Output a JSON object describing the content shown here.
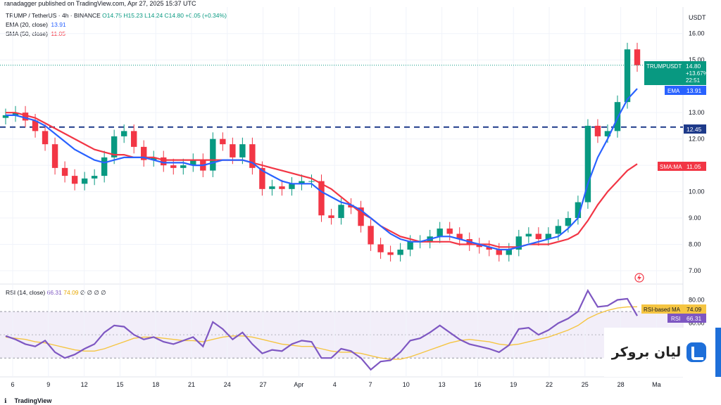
{
  "header": {
    "published": "ranadagger published on TradingView.com, Apr 27, 2025 15:37 UTC"
  },
  "legend": {
    "symbol": "TRUMP / TetherUS · 4h · BINANCE",
    "ohlc": "O14.75  H15.23  L14.24  C14.80  +0.05 (+0.34%)",
    "ema_label": "EMA (20, close)",
    "ema_value": "13.91",
    "sma_label": "SMA (50, close)",
    "sma_value": "11.05",
    "rsi_label": "RSI (14, close)",
    "rsi_value": "66.31",
    "rsi_ma_value": "74.09",
    "rsi_extra": "∅ ∅ ∅ ∅"
  },
  "price_axis": {
    "unit": "USDT",
    "ticks": [
      "16.00",
      "15.00",
      "13.00",
      "12.00",
      "11.00",
      "10.00",
      "9.00",
      "8.00",
      "7.00"
    ]
  },
  "rsi_axis": {
    "ticks": [
      "80.00",
      "60.00"
    ]
  },
  "time_axis": {
    "ticks": [
      "6",
      "9",
      "12",
      "15",
      "18",
      "21",
      "24",
      "27",
      "Apr",
      "4",
      "7",
      "10",
      "13",
      "16",
      "19",
      "22",
      "25",
      "28",
      "Ma"
    ]
  },
  "labels": {
    "price_tag_symbol": "TRUMPUSDT",
    "price_tag_value": "14.80",
    "price_tag_change": "+13.67%",
    "price_tag_timer": "22:51",
    "ema_tag_label": "EMA",
    "ema_tag_value": "13.91",
    "level_tag_value": "12.45",
    "sma_tag_label": "SMA:MA",
    "sma_tag_value": "11.05",
    "rsi_ma_tag_label": "RSI-based MA",
    "rsi_ma_tag_value": "74.09",
    "rsi_tag_label": "RSI",
    "rsi_tag_value": "66.31"
  },
  "footer": {
    "brand": "TradingView"
  },
  "watermark": {
    "text": "لیان بروکر"
  },
  "colors": {
    "up": "#089981",
    "down": "#f23645",
    "ema": "#2962ff",
    "sma": "#f23645",
    "level": "#1e3a8a",
    "rsi": "#7e57c2",
    "rsi_ma": "#f5c542",
    "accent_tag": "#2962ff"
  },
  "chart_data": {
    "type": "candlestick",
    "ylim": [
      6.6,
      16.9
    ],
    "support_level": 12.45,
    "x_ticks": [
      "6",
      "9",
      "12",
      "15",
      "18",
      "21",
      "24",
      "27",
      "Apr",
      "4",
      "7",
      "10",
      "13",
      "16",
      "19",
      "22",
      "25",
      "28",
      "Ma"
    ],
    "price_close": [
      12.9,
      13.0,
      12.7,
      12.3,
      11.8,
      10.9,
      10.6,
      10.3,
      10.5,
      10.6,
      11.3,
      12.1,
      12.3,
      11.7,
      11.2,
      11.3,
      11.0,
      10.9,
      11.0,
      11.2,
      10.8,
      12.0,
      11.8,
      11.3,
      11.8,
      10.9,
      10.1,
      10.2,
      10.1,
      10.3,
      10.4,
      10.4,
      9.1,
      9.0,
      9.5,
      9.4,
      8.7,
      8.0,
      7.7,
      7.6,
      7.8,
      8.1,
      8.1,
      8.3,
      8.6,
      8.4,
      8.2,
      8.0,
      7.9,
      7.8,
      7.6,
      7.8,
      8.3,
      8.4,
      8.2,
      8.4,
      8.7,
      9.0,
      9.6,
      12.5,
      12.1,
      12.3,
      13.4,
      15.4,
      14.8
    ],
    "ema20": [
      12.9,
      12.9,
      12.8,
      12.7,
      12.5,
      12.2,
      11.9,
      11.6,
      11.4,
      11.2,
      11.1,
      11.2,
      11.3,
      11.3,
      11.3,
      11.2,
      11.1,
      11.1,
      11.1,
      11.0,
      11.0,
      11.1,
      11.2,
      11.2,
      11.2,
      11.1,
      10.8,
      10.6,
      10.4,
      10.3,
      10.3,
      10.3,
      10.0,
      9.8,
      9.6,
      9.5,
      9.3,
      9.0,
      8.7,
      8.4,
      8.2,
      8.1,
      8.1,
      8.2,
      8.3,
      8.3,
      8.2,
      8.1,
      8.0,
      7.9,
      7.8,
      7.8,
      7.9,
      8.0,
      8.1,
      8.2,
      8.3,
      8.6,
      9.0,
      10.3,
      11.3,
      12.0,
      12.8,
      13.5,
      13.91
    ],
    "sma50": [
      13.0,
      13.0,
      12.9,
      12.8,
      12.6,
      12.4,
      12.2,
      12.0,
      11.8,
      11.6,
      11.5,
      11.4,
      11.4,
      11.3,
      11.3,
      11.3,
      11.2,
      11.2,
      11.2,
      11.2,
      11.2,
      11.2,
      11.2,
      11.2,
      11.2,
      11.1,
      11.0,
      10.9,
      10.8,
      10.7,
      10.6,
      10.5,
      10.3,
      10.1,
      9.8,
      9.5,
      9.2,
      9.0,
      8.7,
      8.5,
      8.3,
      8.2,
      8.1,
      8.1,
      8.1,
      8.1,
      8.0,
      8.0,
      8.0,
      8.0,
      7.9,
      7.9,
      7.9,
      8.0,
      8.0,
      8.0,
      8.1,
      8.2,
      8.4,
      8.9,
      9.5,
      10.0,
      10.4,
      10.8,
      11.05
    ],
    "rsi_ylim": [
      15,
      90
    ],
    "rsi": [
      49,
      46,
      42,
      40,
      45,
      35,
      30,
      33,
      38,
      42,
      52,
      58,
      57,
      50,
      46,
      48,
      44,
      42,
      45,
      48,
      40,
      61,
      55,
      46,
      52,
      42,
      34,
      37,
      36,
      42,
      45,
      44,
      30,
      30,
      38,
      36,
      30,
      20,
      27,
      28,
      35,
      45,
      47,
      52,
      58,
      52,
      46,
      42,
      40,
      38,
      35,
      41,
      55,
      56,
      50,
      54,
      60,
      64,
      70,
      88,
      74,
      75,
      80,
      81,
      66.31
    ],
    "rsi_ma": [
      48,
      47,
      46,
      44,
      43,
      41,
      39,
      37,
      36,
      36,
      38,
      41,
      44,
      47,
      48,
      48,
      47,
      46,
      45,
      45,
      44,
      46,
      48,
      49,
      49,
      48,
      46,
      44,
      42,
      41,
      40,
      40,
      38,
      36,
      35,
      35,
      34,
      32,
      30,
      29,
      29,
      31,
      34,
      37,
      40,
      43,
      45,
      46,
      45,
      44,
      42,
      41,
      42,
      44,
      46,
      48,
      51,
      54,
      58,
      64,
      68,
      71,
      73,
      74,
      74.09
    ],
    "rsi_band": [
      70,
      30
    ]
  }
}
